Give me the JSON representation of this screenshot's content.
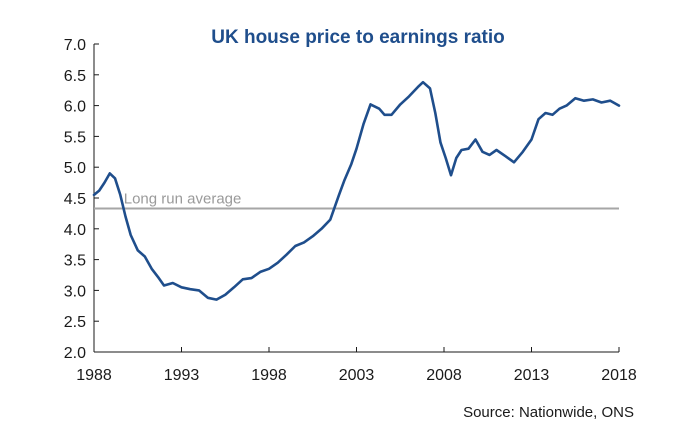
{
  "chart_data": {
    "type": "line",
    "title": "UK house price to earnings ratio",
    "xlabel": "",
    "ylabel": "",
    "source": "Source: Nationwide, ONS",
    "xlim": [
      1988,
      2018
    ],
    "ylim": [
      2.0,
      7.0
    ],
    "x_ticks": [
      "1988",
      "1993",
      "1998",
      "2003",
      "2008",
      "2013",
      "2018"
    ],
    "y_ticks": [
      "7.0",
      "6.5",
      "6.0",
      "5.5",
      "5.0",
      "4.5",
      "4.0",
      "3.5",
      "3.0",
      "2.5",
      "2.0"
    ],
    "grid": false,
    "reference_line": {
      "label": "Long run average",
      "value": 4.33,
      "color": "#a6a6a6"
    },
    "series": [
      {
        "color": "#1f4e8c",
        "x": [
          1988.0,
          1988.3,
          1988.6,
          1988.9,
          1989.2,
          1989.5,
          1989.8,
          1990.1,
          1990.5,
          1990.9,
          1991.3,
          1991.7,
          1992.0,
          1992.5,
          1993.0,
          1993.5,
          1994.0,
          1994.5,
          1995.0,
          1995.5,
          1996.0,
          1996.5,
          1997.0,
          1997.5,
          1998.0,
          1998.5,
          1999.0,
          1999.5,
          2000.0,
          2000.5,
          2001.0,
          2001.5,
          2002.0,
          2002.3,
          2002.7,
          2003.0,
          2003.4,
          2003.8,
          2004.3,
          2004.6,
          2005.0,
          2005.5,
          2006.0,
          2006.5,
          2006.8,
          2007.2,
          2007.5,
          2007.8,
          2008.1,
          2008.4,
          2008.7,
          2009.0,
          2009.4,
          2009.8,
          2010.2,
          2010.6,
          2011.0,
          2011.5,
          2012.0,
          2012.5,
          2013.0,
          2013.4,
          2013.8,
          2014.2,
          2014.6,
          2015.0,
          2015.5,
          2016.0,
          2016.5,
          2017.0,
          2017.5,
          2018.0
        ],
        "values": [
          4.55,
          4.62,
          4.75,
          4.9,
          4.82,
          4.55,
          4.2,
          3.9,
          3.65,
          3.55,
          3.35,
          3.2,
          3.08,
          3.12,
          3.05,
          3.02,
          3.0,
          2.88,
          2.85,
          2.93,
          3.05,
          3.18,
          3.2,
          3.3,
          3.35,
          3.45,
          3.58,
          3.72,
          3.78,
          3.88,
          4.0,
          4.15,
          4.55,
          4.78,
          5.05,
          5.3,
          5.7,
          6.02,
          5.95,
          5.85,
          5.85,
          6.02,
          6.15,
          6.3,
          6.38,
          6.28,
          5.88,
          5.4,
          5.15,
          4.87,
          5.15,
          5.28,
          5.3,
          5.45,
          5.25,
          5.2,
          5.28,
          5.18,
          5.08,
          5.25,
          5.45,
          5.78,
          5.88,
          5.85,
          5.95,
          6.0,
          6.12,
          6.08,
          6.1,
          6.05,
          6.08,
          6.0
        ]
      }
    ]
  }
}
